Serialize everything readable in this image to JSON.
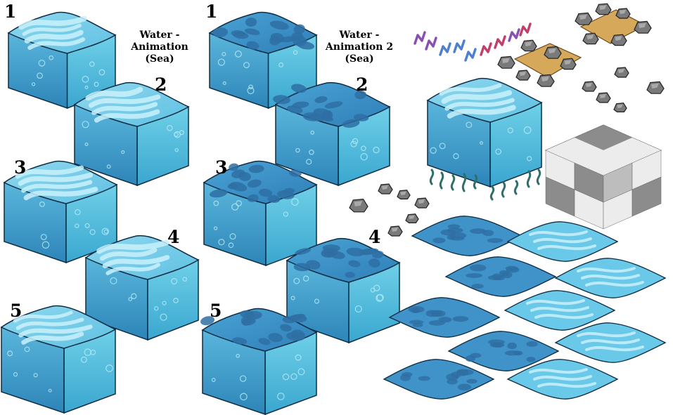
{
  "set1": {
    "title_lines": [
      "Water -",
      "Animation",
      "(Sea)"
    ],
    "frames": [
      "1",
      "2",
      "3",
      "4",
      "5"
    ]
  },
  "set2": {
    "title_lines": [
      "Water -",
      "Animation 2",
      "(Sea)"
    ],
    "frames": [
      "1",
      "2",
      "3",
      "4",
      "5"
    ]
  },
  "colors": {
    "water_top_light": "#9fe0f2",
    "water_top_mid": "#6cc6e6",
    "water_wave": "#c9f1fb",
    "water_left": "#3d9dcb",
    "water_right": "#47b7d9",
    "deep_top": "#3d8fc4",
    "deep_cell": "#2e6ea3",
    "outline": "#0e2d44",
    "rock": "#7a7a7a",
    "rock_light": "#a9a9a9",
    "sand": "#d6a85a",
    "seaweed": "#2f6f6a",
    "coral_purple": "#8a4fb3",
    "coral_blue": "#4e7fd0",
    "coral_red": "#c0406a",
    "checker_light": "#ececec",
    "checker_mid": "#bdbdbd",
    "checker_dark": "#8c8c8c"
  }
}
